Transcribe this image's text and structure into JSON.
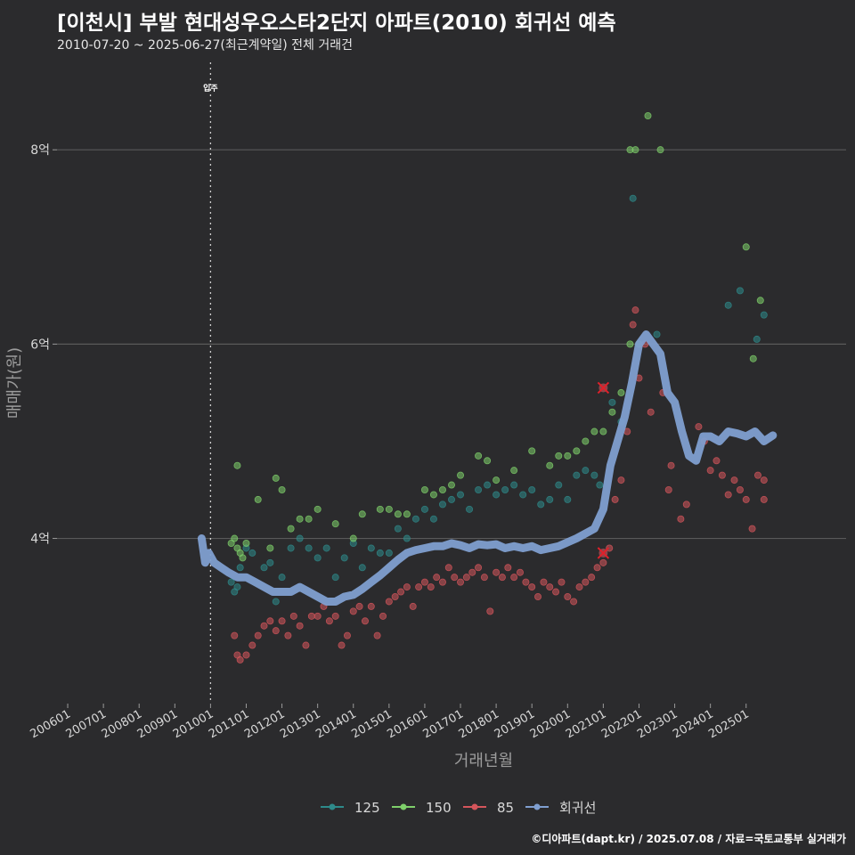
{
  "header": {
    "title": "[이천시] 부발 현대성우오스타2단지 아파트(2010) 회귀선 예측",
    "subtitle": "2010-07-20 ~ 2025-06-27(최근계약일) 전체 거래건"
  },
  "footer": {
    "source": "©디아파트(dapt.kr) / 2025.07.08 / 자료=국토교통부 실거래가"
  },
  "colors": {
    "background": "#2b2b2d",
    "grid": "#5a5a5a",
    "s125": "#2e8a8a",
    "s150": "#7ecf6a",
    "s85": "#d4555b",
    "regression": "#7f9fd0",
    "marker_x": "#e0202a"
  },
  "chart_data": {
    "type": "scatter",
    "xlabel": "거래년월",
    "ylabel": "매매가(원)",
    "x_ticks": [
      "200601",
      "200701",
      "200801",
      "200901",
      "201001",
      "201101",
      "201201",
      "201301",
      "201401",
      "201501",
      "201601",
      "201701",
      "201801",
      "201901",
      "202001",
      "202101",
      "202201",
      "202301",
      "202401",
      "202501"
    ],
    "y_ticks": [
      {
        "value": 4,
        "label": "4억"
      },
      {
        "value": 6,
        "label": "6억"
      },
      {
        "value": 8,
        "label": "8억"
      }
    ],
    "xlim": [
      2005.7,
      2027.8
    ],
    "ylim": [
      2.3,
      8.9
    ],
    "annotation": {
      "label": "입주",
      "x": 2010.0
    },
    "legend": {
      "position": "bottom",
      "entries": [
        "125",
        "150",
        "85",
        "회귀선"
      ]
    },
    "series": [
      {
        "name": "125",
        "color_key": "s125",
        "points": [
          [
            2010.58,
            3.55
          ],
          [
            2010.67,
            3.45
          ],
          [
            2010.75,
            3.5
          ],
          [
            2010.83,
            3.7
          ],
          [
            2011.0,
            3.9
          ],
          [
            2011.17,
            3.85
          ],
          [
            2011.5,
            3.7
          ],
          [
            2011.67,
            3.75
          ],
          [
            2011.83,
            3.35
          ],
          [
            2012.0,
            3.6
          ],
          [
            2012.25,
            3.9
          ],
          [
            2012.5,
            4.0
          ],
          [
            2012.75,
            3.9
          ],
          [
            2013.0,
            3.8
          ],
          [
            2013.25,
            3.9
          ],
          [
            2013.5,
            3.6
          ],
          [
            2013.75,
            3.8
          ],
          [
            2014.0,
            3.95
          ],
          [
            2014.25,
            3.7
          ],
          [
            2014.5,
            3.9
          ],
          [
            2014.75,
            3.85
          ],
          [
            2015.0,
            3.85
          ],
          [
            2015.25,
            4.1
          ],
          [
            2015.5,
            4.0
          ],
          [
            2015.75,
            4.2
          ],
          [
            2016.0,
            4.3
          ],
          [
            2016.25,
            4.2
          ],
          [
            2016.5,
            4.35
          ],
          [
            2016.75,
            4.4
          ],
          [
            2017.0,
            4.45
          ],
          [
            2017.25,
            4.3
          ],
          [
            2017.5,
            4.5
          ],
          [
            2017.75,
            4.55
          ],
          [
            2018.0,
            4.45
          ],
          [
            2018.25,
            4.5
          ],
          [
            2018.5,
            4.55
          ],
          [
            2018.75,
            4.45
          ],
          [
            2019.0,
            4.5
          ],
          [
            2019.25,
            4.35
          ],
          [
            2019.5,
            4.4
          ],
          [
            2019.75,
            4.55
          ],
          [
            2020.0,
            4.4
          ],
          [
            2020.25,
            4.65
          ],
          [
            2020.5,
            4.7
          ],
          [
            2020.75,
            4.65
          ],
          [
            2020.9,
            4.55
          ],
          [
            2021.25,
            5.4
          ],
          [
            2021.5,
            5.2
          ],
          [
            2021.83,
            7.5
          ],
          [
            2022.5,
            6.1
          ],
          [
            2024.5,
            6.4
          ],
          [
            2024.83,
            6.55
          ],
          [
            2025.3,
            6.05
          ],
          [
            2025.5,
            6.3
          ]
        ]
      },
      {
        "name": "150",
        "color_key": "s150",
        "points": [
          [
            2010.58,
            3.95
          ],
          [
            2010.67,
            4.0
          ],
          [
            2010.75,
            3.9
          ],
          [
            2010.83,
            3.85
          ],
          [
            2010.9,
            3.8
          ],
          [
            2011.0,
            3.95
          ],
          [
            2010.75,
            4.75
          ],
          [
            2011.33,
            4.4
          ],
          [
            2011.67,
            3.9
          ],
          [
            2011.83,
            4.62
          ],
          [
            2012.0,
            4.5
          ],
          [
            2012.25,
            4.1
          ],
          [
            2012.5,
            4.2
          ],
          [
            2012.75,
            4.2
          ],
          [
            2013.0,
            4.3
          ],
          [
            2013.5,
            4.15
          ],
          [
            2014.0,
            4.0
          ],
          [
            2014.25,
            4.25
          ],
          [
            2014.75,
            4.3
          ],
          [
            2015.0,
            4.3
          ],
          [
            2015.25,
            4.25
          ],
          [
            2015.5,
            4.25
          ],
          [
            2016.0,
            4.5
          ],
          [
            2016.25,
            4.45
          ],
          [
            2016.5,
            4.5
          ],
          [
            2016.75,
            4.55
          ],
          [
            2017.0,
            4.65
          ],
          [
            2017.5,
            4.85
          ],
          [
            2017.75,
            4.8
          ],
          [
            2018.0,
            4.6
          ],
          [
            2018.5,
            4.7
          ],
          [
            2019.0,
            4.9
          ],
          [
            2019.5,
            4.75
          ],
          [
            2019.75,
            4.85
          ],
          [
            2020.0,
            4.85
          ],
          [
            2020.25,
            4.9
          ],
          [
            2020.5,
            5.0
          ],
          [
            2020.75,
            5.1
          ],
          [
            2021.0,
            5.1
          ],
          [
            2021.25,
            5.3
          ],
          [
            2021.5,
            5.5
          ],
          [
            2021.75,
            6.0
          ],
          [
            2022.0,
            6.0
          ],
          [
            2021.75,
            8.0
          ],
          [
            2021.9,
            8.0
          ],
          [
            2022.25,
            8.35
          ],
          [
            2022.6,
            8.0
          ],
          [
            2025.0,
            7.0
          ],
          [
            2025.4,
            6.45
          ],
          [
            2025.2,
            5.85
          ]
        ]
      },
      {
        "name": "85",
        "color_key": "s85",
        "points": [
          [
            2010.67,
            3.0
          ],
          [
            2010.75,
            2.8
          ],
          [
            2010.83,
            2.75
          ],
          [
            2011.0,
            2.8
          ],
          [
            2011.17,
            2.9
          ],
          [
            2011.33,
            3.0
          ],
          [
            2011.5,
            3.1
          ],
          [
            2011.67,
            3.15
          ],
          [
            2011.83,
            3.05
          ],
          [
            2012.0,
            3.15
          ],
          [
            2012.17,
            3.0
          ],
          [
            2012.33,
            3.2
          ],
          [
            2012.5,
            3.1
          ],
          [
            2012.67,
            2.9
          ],
          [
            2012.83,
            3.2
          ],
          [
            2013.0,
            3.2
          ],
          [
            2013.17,
            3.3
          ],
          [
            2013.33,
            3.15
          ],
          [
            2013.5,
            3.2
          ],
          [
            2013.67,
            2.9
          ],
          [
            2013.83,
            3.0
          ],
          [
            2014.0,
            3.25
          ],
          [
            2014.17,
            3.3
          ],
          [
            2014.33,
            3.15
          ],
          [
            2014.5,
            3.3
          ],
          [
            2014.67,
            3.0
          ],
          [
            2014.83,
            3.2
          ],
          [
            2015.0,
            3.35
          ],
          [
            2015.17,
            3.4
          ],
          [
            2015.33,
            3.45
          ],
          [
            2015.5,
            3.5
          ],
          [
            2015.67,
            3.3
          ],
          [
            2015.83,
            3.5
          ],
          [
            2016.0,
            3.55
          ],
          [
            2016.17,
            3.5
          ],
          [
            2016.33,
            3.6
          ],
          [
            2016.5,
            3.55
          ],
          [
            2016.67,
            3.7
          ],
          [
            2016.83,
            3.6
          ],
          [
            2017.0,
            3.55
          ],
          [
            2017.17,
            3.6
          ],
          [
            2017.33,
            3.65
          ],
          [
            2017.5,
            3.7
          ],
          [
            2017.67,
            3.6
          ],
          [
            2017.83,
            3.25
          ],
          [
            2018.0,
            3.65
          ],
          [
            2018.17,
            3.6
          ],
          [
            2018.33,
            3.7
          ],
          [
            2018.5,
            3.6
          ],
          [
            2018.67,
            3.65
          ],
          [
            2018.83,
            3.55
          ],
          [
            2019.0,
            3.5
          ],
          [
            2019.17,
            3.4
          ],
          [
            2019.33,
            3.55
          ],
          [
            2019.5,
            3.5
          ],
          [
            2019.67,
            3.45
          ],
          [
            2019.83,
            3.55
          ],
          [
            2020.0,
            3.4
          ],
          [
            2020.17,
            3.35
          ],
          [
            2020.33,
            3.5
          ],
          [
            2020.5,
            3.55
          ],
          [
            2020.67,
            3.6
          ],
          [
            2020.83,
            3.7
          ],
          [
            2021.0,
            3.75
          ],
          [
            2021.17,
            3.9
          ],
          [
            2021.33,
            4.4
          ],
          [
            2021.5,
            4.6
          ],
          [
            2021.67,
            5.1
          ],
          [
            2021.83,
            6.2
          ],
          [
            2022.0,
            5.65
          ],
          [
            2022.17,
            6.0
          ],
          [
            2022.33,
            5.3
          ],
          [
            2022.67,
            5.5
          ],
          [
            2022.83,
            4.5
          ],
          [
            2022.9,
            4.75
          ],
          [
            2023.17,
            4.2
          ],
          [
            2023.33,
            4.35
          ],
          [
            2023.67,
            5.15
          ],
          [
            2023.83,
            5.0
          ],
          [
            2024.0,
            4.7
          ],
          [
            2024.17,
            4.8
          ],
          [
            2024.33,
            4.65
          ],
          [
            2024.5,
            4.45
          ],
          [
            2024.67,
            4.6
          ],
          [
            2024.83,
            4.5
          ],
          [
            2025.0,
            4.4
          ],
          [
            2025.17,
            4.1
          ],
          [
            2025.33,
            4.65
          ],
          [
            2025.5,
            4.4
          ],
          [
            2025.5,
            4.6
          ],
          [
            2021.9,
            6.35
          ]
        ]
      },
      {
        "name": "회귀선",
        "color_key": "regression",
        "type": "line",
        "points": [
          [
            2009.75,
            4.0
          ],
          [
            2009.85,
            3.75
          ],
          [
            2009.95,
            3.85
          ],
          [
            2010.1,
            3.75
          ],
          [
            2010.3,
            3.7
          ],
          [
            2010.5,
            3.65
          ],
          [
            2010.75,
            3.6
          ],
          [
            2011.0,
            3.6
          ],
          [
            2011.25,
            3.55
          ],
          [
            2011.5,
            3.5
          ],
          [
            2011.75,
            3.45
          ],
          [
            2012.0,
            3.45
          ],
          [
            2012.25,
            3.45
          ],
          [
            2012.5,
            3.5
          ],
          [
            2012.75,
            3.45
          ],
          [
            2013.0,
            3.4
          ],
          [
            2013.25,
            3.35
          ],
          [
            2013.5,
            3.35
          ],
          [
            2013.75,
            3.4
          ],
          [
            2014.0,
            3.42
          ],
          [
            2014.25,
            3.48
          ],
          [
            2014.5,
            3.55
          ],
          [
            2014.75,
            3.62
          ],
          [
            2015.0,
            3.7
          ],
          [
            2015.25,
            3.78
          ],
          [
            2015.5,
            3.85
          ],
          [
            2015.75,
            3.88
          ],
          [
            2016.0,
            3.9
          ],
          [
            2016.25,
            3.92
          ],
          [
            2016.5,
            3.92
          ],
          [
            2016.75,
            3.95
          ],
          [
            2017.0,
            3.93
          ],
          [
            2017.25,
            3.9
          ],
          [
            2017.5,
            3.94
          ],
          [
            2017.75,
            3.93
          ],
          [
            2018.0,
            3.94
          ],
          [
            2018.25,
            3.9
          ],
          [
            2018.5,
            3.92
          ],
          [
            2018.75,
            3.9
          ],
          [
            2019.0,
            3.92
          ],
          [
            2019.25,
            3.88
          ],
          [
            2019.5,
            3.9
          ],
          [
            2019.75,
            3.92
          ],
          [
            2020.0,
            3.96
          ],
          [
            2020.25,
            4.0
          ],
          [
            2020.5,
            4.05
          ],
          [
            2020.75,
            4.1
          ],
          [
            2021.0,
            4.3
          ],
          [
            2021.2,
            4.75
          ],
          [
            2021.4,
            5.0
          ],
          [
            2021.6,
            5.25
          ],
          [
            2021.8,
            5.6
          ],
          [
            2022.0,
            6.0
          ],
          [
            2022.2,
            6.1
          ],
          [
            2022.4,
            6.0
          ],
          [
            2022.6,
            5.9
          ],
          [
            2022.8,
            5.5
          ],
          [
            2023.0,
            5.4
          ],
          [
            2023.2,
            5.1
          ],
          [
            2023.4,
            4.85
          ],
          [
            2023.6,
            4.8
          ],
          [
            2023.8,
            5.05
          ],
          [
            2024.0,
            5.05
          ],
          [
            2024.25,
            5.0
          ],
          [
            2024.5,
            5.1
          ],
          [
            2024.75,
            5.08
          ],
          [
            2025.0,
            5.05
          ],
          [
            2025.25,
            5.1
          ],
          [
            2025.5,
            5.0
          ],
          [
            2025.75,
            5.06
          ]
        ]
      }
    ],
    "highlighted": [
      [
        2021.0,
        5.55
      ],
      [
        2021.0,
        3.85
      ]
    ]
  }
}
